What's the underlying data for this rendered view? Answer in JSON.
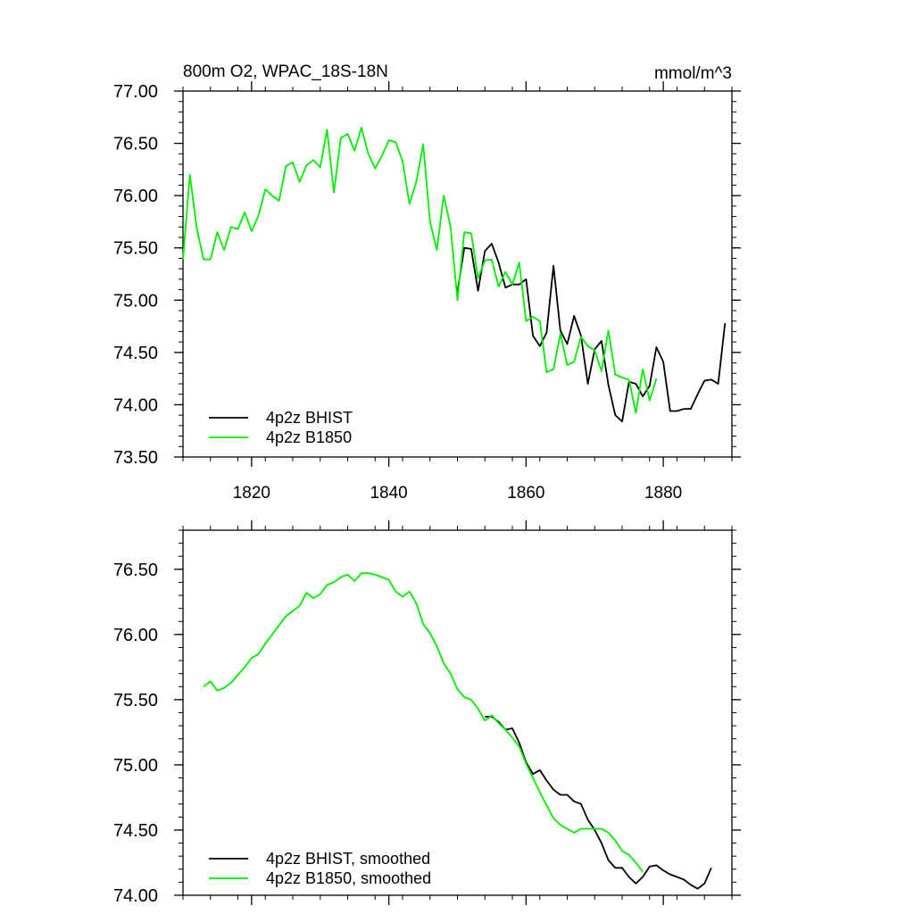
{
  "colors": {
    "bhist": "#000000",
    "b1850": "#00ee00",
    "axis": "#000000"
  },
  "header": {
    "title_left": "800m O2, WPAC_18S-18N",
    "units": "mmol/m^3"
  },
  "chart_data": [
    {
      "type": "line",
      "title": "800m O2, WPAC_18S-18N",
      "units": "mmol/m^3",
      "xlim": [
        1810,
        1890
      ],
      "ylim": [
        73.5,
        77.0
      ],
      "x_ticks": [
        1820,
        1840,
        1860,
        1880
      ],
      "x_tick_labels": [
        "1820",
        "1840",
        "1860",
        "1880"
      ],
      "y_ticks": [
        73.5,
        74.0,
        74.5,
        75.0,
        75.5,
        76.0,
        76.5,
        77.0
      ],
      "y_tick_labels": [
        "73.50",
        "74.00",
        "74.50",
        "75.00",
        "75.50",
        "76.00",
        "76.50",
        "77.00"
      ],
      "legend_position": "bottom-left",
      "series": [
        {
          "name": "4p2z BHIST",
          "color": "#000000",
          "x": [
            1850,
            1851,
            1852,
            1853,
            1854,
            1855,
            1856,
            1857,
            1858,
            1859,
            1860,
            1861,
            1862,
            1863,
            1864,
            1865,
            1866,
            1867,
            1868,
            1869,
            1870,
            1871,
            1872,
            1873,
            1874,
            1875,
            1876,
            1877,
            1878,
            1879,
            1880,
            1881,
            1882,
            1883,
            1884,
            1885,
            1886,
            1887,
            1888,
            1889
          ],
          "y": [
            75.08,
            75.5,
            75.49,
            75.09,
            75.47,
            75.54,
            75.36,
            75.12,
            75.15,
            75.15,
            75.2,
            74.66,
            74.56,
            74.69,
            75.33,
            74.71,
            74.58,
            74.85,
            74.66,
            74.2,
            74.53,
            74.61,
            74.19,
            73.9,
            73.84,
            74.22,
            74.2,
            74.08,
            74.18,
            74.55,
            74.41,
            73.94,
            73.94,
            73.96,
            73.96,
            74.1,
            74.23,
            74.24,
            74.2,
            74.78
          ]
        },
        {
          "name": "4p2z B1850",
          "color": "#00ee00",
          "x": [
            1810,
            1811,
            1812,
            1813,
            1814,
            1815,
            1816,
            1817,
            1818,
            1819,
            1820,
            1821,
            1822,
            1823,
            1824,
            1825,
            1826,
            1827,
            1828,
            1829,
            1830,
            1831,
            1832,
            1833,
            1834,
            1835,
            1836,
            1837,
            1838,
            1839,
            1840,
            1841,
            1842,
            1843,
            1844,
            1845,
            1846,
            1847,
            1848,
            1849,
            1850,
            1851,
            1852,
            1853,
            1854,
            1855,
            1856,
            1857,
            1858,
            1859,
            1860,
            1861,
            1862,
            1863,
            1864,
            1865,
            1866,
            1867,
            1868,
            1869,
            1870,
            1871,
            1872,
            1873,
            1874,
            1875,
            1876,
            1877,
            1878,
            1879
          ],
          "y": [
            75.39,
            76.2,
            75.69,
            75.39,
            75.39,
            75.65,
            75.48,
            75.7,
            75.68,
            75.84,
            75.66,
            75.81,
            76.06,
            76.0,
            75.95,
            76.28,
            76.32,
            76.13,
            76.29,
            76.34,
            76.27,
            76.63,
            76.03,
            76.55,
            76.59,
            76.43,
            76.65,
            76.4,
            76.26,
            76.38,
            76.53,
            76.51,
            76.33,
            75.92,
            76.13,
            76.49,
            75.75,
            75.48,
            76.0,
            75.7,
            75.0,
            75.65,
            75.64,
            75.21,
            75.38,
            75.39,
            75.13,
            75.27,
            75.15,
            75.36,
            74.8,
            74.84,
            74.8,
            74.31,
            74.34,
            74.68,
            74.38,
            74.41,
            74.65,
            74.56,
            74.52,
            74.32,
            74.71,
            74.29,
            74.26,
            74.24,
            73.92,
            74.34,
            74.04,
            74.25
          ]
        }
      ]
    },
    {
      "type": "line",
      "title": "",
      "xlim": [
        1810,
        1890
      ],
      "ylim": [
        74.0,
        76.8
      ],
      "x_ticks": [
        1820,
        1840,
        1860,
        1880
      ],
      "y_ticks": [
        74.0,
        74.5,
        75.0,
        75.5,
        76.0,
        76.5
      ],
      "y_tick_labels": [
        "74.00",
        "74.50",
        "75.00",
        "75.50",
        "76.00",
        "76.50"
      ],
      "legend_position": "bottom-left",
      "series": [
        {
          "name": "4p2z BHIST, smoothed",
          "color": "#000000",
          "x": [
            1854,
            1855,
            1856,
            1857,
            1858,
            1859,
            1860,
            1861,
            1862,
            1863,
            1864,
            1865,
            1866,
            1867,
            1868,
            1869,
            1870,
            1871,
            1872,
            1873,
            1874,
            1875,
            1876,
            1877,
            1878,
            1879,
            1880,
            1881,
            1882,
            1883,
            1884,
            1885,
            1886,
            1887
          ],
          "y": [
            75.37,
            75.37,
            75.33,
            75.27,
            75.28,
            75.17,
            75.02,
            74.93,
            74.96,
            74.88,
            74.81,
            74.77,
            74.77,
            74.72,
            74.7,
            74.58,
            74.5,
            74.4,
            74.27,
            74.21,
            74.21,
            74.14,
            74.09,
            74.14,
            74.22,
            74.23,
            74.19,
            74.16,
            74.14,
            74.12,
            74.08,
            74.05,
            74.09,
            74.21
          ]
        },
        {
          "name": "4p2z B1850, smoothed",
          "color": "#00ee00",
          "x": [
            1813,
            1814,
            1815,
            1816,
            1817,
            1818,
            1819,
            1820,
            1821,
            1822,
            1823,
            1824,
            1825,
            1826,
            1827,
            1828,
            1829,
            1830,
            1831,
            1832,
            1833,
            1834,
            1835,
            1836,
            1837,
            1838,
            1839,
            1840,
            1841,
            1842,
            1843,
            1844,
            1845,
            1846,
            1847,
            1848,
            1849,
            1850,
            1851,
            1852,
            1853,
            1854,
            1855,
            1856,
            1857,
            1858,
            1859,
            1860,
            1861,
            1862,
            1863,
            1864,
            1865,
            1866,
            1867,
            1868,
            1869,
            1870,
            1871,
            1872,
            1873,
            1874,
            1875,
            1876,
            1877
          ],
          "y": [
            75.6,
            75.64,
            75.57,
            75.59,
            75.63,
            75.69,
            75.75,
            75.82,
            75.85,
            75.93,
            76.0,
            76.07,
            76.14,
            76.18,
            76.22,
            76.32,
            76.28,
            76.31,
            76.38,
            76.4,
            76.44,
            76.46,
            76.41,
            76.47,
            76.47,
            76.46,
            76.44,
            76.42,
            76.33,
            76.29,
            76.33,
            76.24,
            76.08,
            76.01,
            75.91,
            75.78,
            75.7,
            75.58,
            75.52,
            75.5,
            75.43,
            75.34,
            75.38,
            75.32,
            75.27,
            75.21,
            75.14,
            75.01,
            74.9,
            74.79,
            74.69,
            74.59,
            74.54,
            74.51,
            74.48,
            74.51,
            74.51,
            74.51,
            74.51,
            74.48,
            74.42,
            74.34,
            74.31,
            74.25,
            74.18
          ]
        }
      ]
    }
  ]
}
